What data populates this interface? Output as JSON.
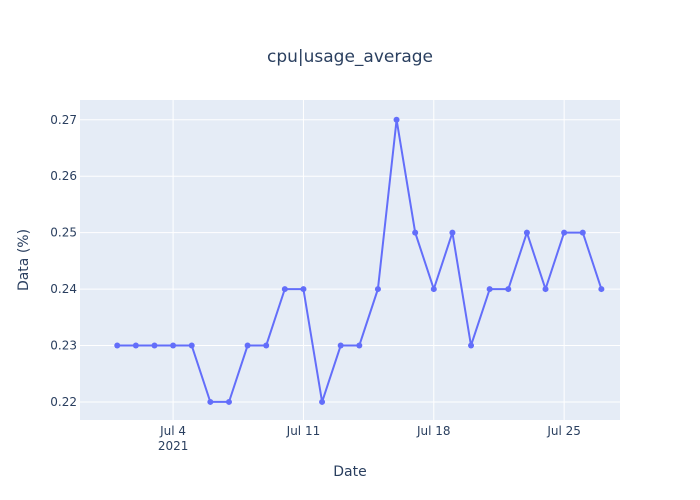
{
  "chart_data": {
    "type": "line",
    "title": "cpu|usage_average",
    "xlabel": "Date",
    "ylabel": "Data (%)",
    "x_ticks": [
      {
        "date": "2021-07-04",
        "label": "Jul 4",
        "sublabel": "2021"
      },
      {
        "date": "2021-07-11",
        "label": "Jul 11",
        "sublabel": ""
      },
      {
        "date": "2021-07-18",
        "label": "Jul 18",
        "sublabel": ""
      },
      {
        "date": "2021-07-25",
        "label": "Jul 25",
        "sublabel": ""
      }
    ],
    "y_ticks": [
      0.22,
      0.23,
      0.24,
      0.25,
      0.26,
      0.27
    ],
    "xlim": [
      "2021-06-29",
      "2021-07-28"
    ],
    "ylim": [
      0.2168,
      0.2735
    ],
    "grid": true,
    "colors": {
      "line": "#636efa",
      "plot_bg": "#e5ecf6",
      "grid": "#ffffff",
      "text": "#2a3f5f"
    },
    "series": [
      {
        "x": [
          "2021-07-01",
          "2021-07-02",
          "2021-07-03",
          "2021-07-04",
          "2021-07-05",
          "2021-07-06",
          "2021-07-07",
          "2021-07-08",
          "2021-07-09",
          "2021-07-10",
          "2021-07-11",
          "2021-07-12",
          "2021-07-13",
          "2021-07-14",
          "2021-07-15",
          "2021-07-16",
          "2021-07-17",
          "2021-07-18",
          "2021-07-19",
          "2021-07-20",
          "2021-07-21",
          "2021-07-22",
          "2021-07-23",
          "2021-07-24",
          "2021-07-25",
          "2021-07-26",
          "2021-07-27"
        ],
        "y": [
          0.23,
          0.23,
          0.23,
          0.23,
          0.23,
          0.22,
          0.22,
          0.23,
          0.23,
          0.24,
          0.24,
          0.22,
          0.23,
          0.23,
          0.24,
          0.27,
          0.25,
          0.24,
          0.25,
          0.23,
          0.24,
          0.24,
          0.25,
          0.24,
          0.25,
          0.25,
          0.24
        ]
      }
    ]
  }
}
